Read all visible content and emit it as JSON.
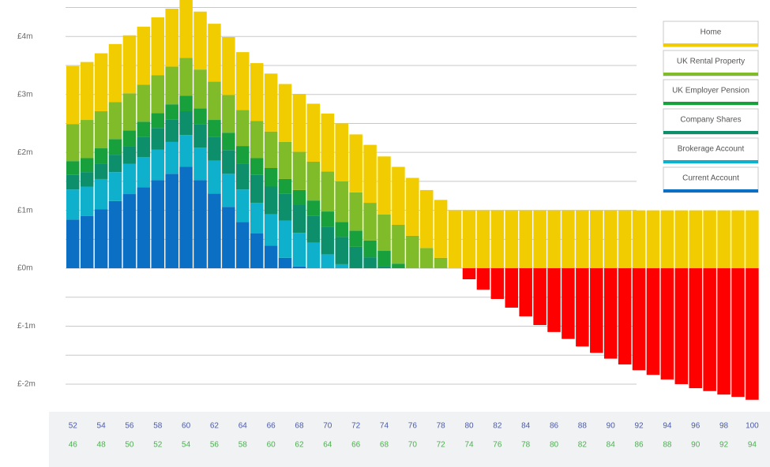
{
  "chart_data": {
    "type": "stacked_bar",
    "categories": [
      52,
      null,
      54,
      null,
      56,
      null,
      58,
      null,
      60,
      null,
      62,
      null,
      64,
      null,
      66,
      null,
      68,
      null,
      70,
      null,
      72,
      null,
      74,
      null,
      76,
      null,
      78,
      null,
      80,
      null,
      82,
      null,
      84,
      null,
      86,
      null,
      88,
      null,
      90,
      null,
      92,
      null,
      94,
      null,
      96,
      null,
      98,
      null,
      100
    ],
    "categories2": [
      46,
      null,
      48,
      null,
      50,
      null,
      52,
      null,
      54,
      null,
      56,
      null,
      58,
      null,
      60,
      null,
      62,
      null,
      64,
      null,
      66,
      null,
      68,
      null,
      70,
      null,
      72,
      null,
      74,
      null,
      76,
      null,
      78,
      null,
      80,
      null,
      82,
      null,
      84,
      null,
      86,
      null,
      88,
      null,
      90,
      null,
      92,
      null,
      94
    ],
    "ylim": [
      -2.45,
      4.63
    ],
    "yticks": [
      {
        "value": -2,
        "label": "£-2m"
      },
      {
        "value": -1,
        "label": "£-1m"
      },
      {
        "value": 0,
        "label": "£0m"
      },
      {
        "value": 1,
        "label": "£1m"
      },
      {
        "value": 2,
        "label": "£2m"
      },
      {
        "value": 3,
        "label": "£3m"
      },
      {
        "value": 4,
        "label": "£4m"
      }
    ],
    "grid_lines": [
      -2,
      -1.5,
      -1,
      -0.5,
      0,
      0.5,
      1,
      1.5,
      2,
      2.5,
      3,
      3.5,
      4,
      4.5
    ],
    "series": [
      {
        "name": "Current Account",
        "color": "#0b6fc4",
        "values": [
          0.84,
          0.9,
          1.02,
          1.16,
          1.28,
          1.4,
          1.52,
          1.63,
          1.75,
          1.52,
          1.29,
          1.06,
          0.8,
          0.6,
          0.39,
          0.18,
          0.03,
          0,
          0,
          0,
          0,
          0,
          0,
          0,
          0,
          0,
          0,
          0,
          0,
          0,
          0,
          0,
          0,
          0,
          0,
          0,
          0,
          0,
          0,
          0,
          0,
          0,
          0,
          0,
          0,
          0,
          0,
          0,
          0
        ]
      },
      {
        "name": "Brokerage Account",
        "color": "#0fb0cc",
        "values": [
          0.52,
          0.51,
          0.52,
          0.5,
          0.52,
          0.52,
          0.53,
          0.55,
          0.55,
          0.56,
          0.57,
          0.57,
          0.56,
          0.53,
          0.54,
          0.64,
          0.58,
          0.44,
          0.24,
          0.07,
          0,
          0,
          0,
          0,
          0,
          0,
          0,
          0,
          0,
          0,
          0,
          0,
          0,
          0,
          0,
          0,
          0,
          0,
          0,
          0,
          0,
          0,
          0,
          0,
          0,
          0,
          0,
          0,
          0
        ]
      },
      {
        "name": "Company Shares",
        "color": "#0c8f6a",
        "values": [
          0.25,
          0.25,
          0.27,
          0.3,
          0.31,
          0.35,
          0.37,
          0.39,
          0.41,
          0.41,
          0.41,
          0.41,
          0.45,
          0.48,
          0.48,
          0.47,
          0.48,
          0.47,
          0.48,
          0.47,
          0.37,
          0.19,
          0.04,
          0,
          0,
          0,
          0,
          0,
          0,
          0,
          0,
          0,
          0,
          0,
          0,
          0,
          0,
          0,
          0,
          0,
          0,
          0,
          0,
          0,
          0,
          0,
          0,
          0,
          0
        ]
      },
      {
        "name": "UK Employer Pension",
        "color": "#17a03c",
        "values": [
          0.24,
          0.24,
          0.26,
          0.27,
          0.27,
          0.26,
          0.26,
          0.26,
          0.27,
          0.27,
          0.29,
          0.3,
          0.3,
          0.29,
          0.32,
          0.25,
          0.26,
          0.26,
          0.26,
          0.26,
          0.28,
          0.29,
          0.26,
          0.08,
          0,
          0,
          0,
          0,
          0,
          0,
          0,
          0,
          0,
          0,
          0,
          0,
          0,
          0,
          0,
          0,
          0,
          0,
          0,
          0,
          0,
          0,
          0,
          0,
          0
        ]
      },
      {
        "name": "UK Rental Property",
        "color": "#80bc2a",
        "values": [
          0.64,
          0.66,
          0.64,
          0.64,
          0.64,
          0.64,
          0.65,
          0.65,
          0.65,
          0.67,
          0.66,
          0.65,
          0.62,
          0.64,
          0.63,
          0.64,
          0.66,
          0.67,
          0.69,
          0.7,
          0.66,
          0.65,
          0.63,
          0.67,
          0.56,
          0.35,
          0.18,
          0,
          0,
          0,
          0,
          0,
          0,
          0,
          0,
          0,
          0,
          0,
          0,
          0,
          0,
          0,
          0,
          0,
          0,
          0,
          0,
          0,
          0
        ]
      },
      {
        "name": "Home",
        "color": "#f0cc00",
        "values": [
          1,
          1,
          1,
          1,
          1,
          1,
          1,
          1,
          1,
          1,
          1,
          1,
          1,
          1,
          1,
          1,
          1,
          1,
          1,
          1,
          1,
          1,
          1,
          1,
          1,
          1,
          1,
          1,
          1,
          1,
          1,
          1,
          1,
          1,
          1,
          1,
          1,
          1,
          1,
          1,
          1,
          1,
          1,
          1,
          1,
          1,
          1,
          1,
          1
        ]
      },
      {
        "color": "#ff0000",
        "values": [
          0,
          0,
          0,
          0,
          0,
          0,
          0,
          0,
          0,
          0,
          0,
          0,
          0,
          0,
          0,
          0,
          0,
          0,
          0,
          0,
          0,
          0,
          0,
          0,
          0,
          0,
          0,
          0,
          -0.19,
          -0.37,
          -0.53,
          -0.68,
          -0.83,
          -0.98,
          -1.1,
          -1.22,
          -1.35,
          -1.46,
          -1.56,
          -1.66,
          -1.76,
          -1.84,
          -1.92,
          -2.0,
          -2.07,
          -2.12,
          -2.18,
          -2.22,
          -2.27
        ]
      }
    ]
  }
}
